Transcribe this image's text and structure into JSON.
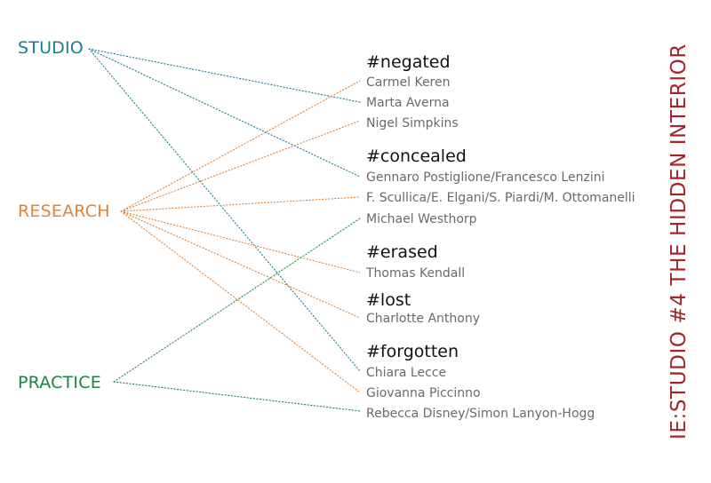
{
  "categories": {
    "studio": "STUDIO",
    "research": "RESEARCH",
    "practice": "PRACTICE"
  },
  "tags": {
    "negated": "#negated",
    "concealed": "#concealed",
    "erased": "#erased",
    "lost": "#lost",
    "forgotten": "#forgotten"
  },
  "authors": {
    "keren": "Carmel Keren",
    "averna": "Marta Averna",
    "simpkins": "Nigel Simpkins",
    "postiglione": "Gennaro Postiglione/Francesco Lenzini",
    "scullica": "F. Scullica/E. Elgani/S. Piardi/M. Ottomanelli",
    "westhorp": "Michael Westhorp",
    "kendall": "Thomas Kendall",
    "anthony": "Charlotte Anthony",
    "lecce": "Chiara Lecce",
    "piccinno": "Giovanna Piccinno",
    "disney": "Rebecca Disney/Simon Lanyon-Hogg"
  },
  "side_title": "IE:STUDIO #4 THE HIDDEN INTERIOR",
  "colors": {
    "studio": "#1a7d93",
    "research": "#e0843a",
    "practice": "#1f8148",
    "title": "#a3262a"
  },
  "links": [
    {
      "from": "studio",
      "to": "averna"
    },
    {
      "from": "studio",
      "to": "postiglione"
    },
    {
      "from": "studio",
      "to": "lecce"
    },
    {
      "from": "research",
      "to": "keren"
    },
    {
      "from": "research",
      "to": "simpkins"
    },
    {
      "from": "research",
      "to": "scullica"
    },
    {
      "from": "research",
      "to": "kendall"
    },
    {
      "from": "research",
      "to": "anthony"
    },
    {
      "from": "research",
      "to": "piccinno"
    },
    {
      "from": "practice",
      "to": "westhorp"
    },
    {
      "from": "practice",
      "to": "disney"
    }
  ]
}
